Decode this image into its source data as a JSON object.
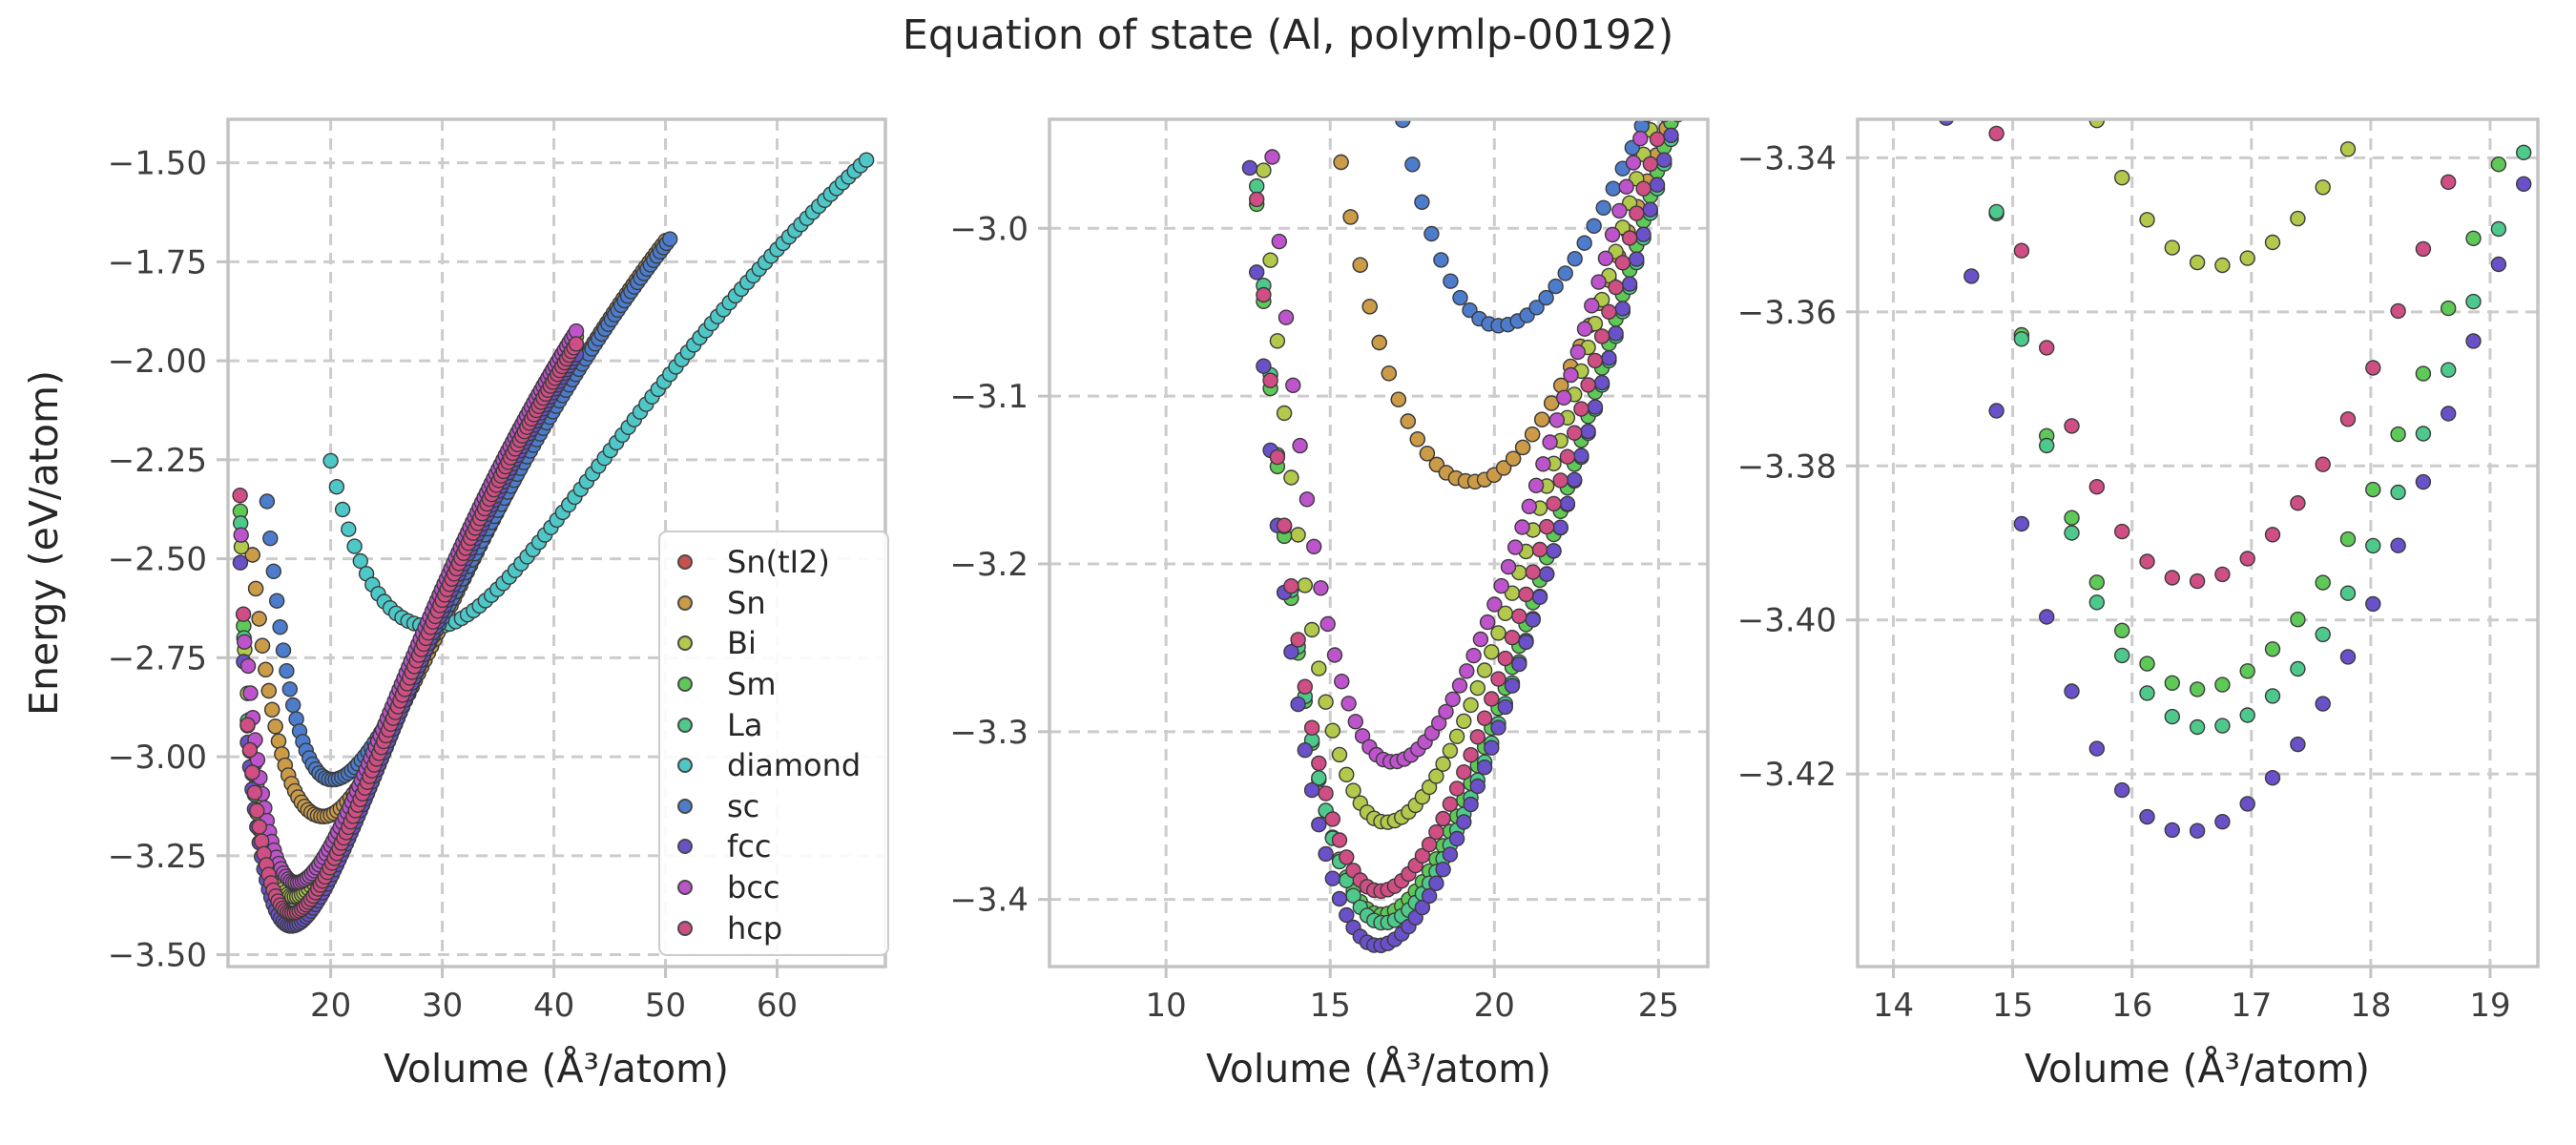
{
  "title": "Equation of state (Al, polymlp-00192)",
  "xlabel": "Volume (Å³/atom)",
  "ylabel": "Energy (eV/atom)",
  "legend": {
    "entries": [
      {
        "name": "sn-ti2",
        "label": "Sn(tI2)",
        "color": "#c9504e"
      },
      {
        "name": "sn",
        "label": "Sn",
        "color": "#cc9b48"
      },
      {
        "name": "bi",
        "label": "Bi",
        "color": "#b2c94b"
      },
      {
        "name": "sm",
        "label": "Sm",
        "color": "#5ec957"
      },
      {
        "name": "la",
        "label": "La",
        "color": "#4ec98c"
      },
      {
        "name": "diamond",
        "label": "diamond",
        "color": "#4dc7c7"
      },
      {
        "name": "sc",
        "label": "sc",
        "color": "#4c7ccb"
      },
      {
        "name": "fcc",
        "label": "fcc",
        "color": "#6a51c9"
      },
      {
        "name": "bcc",
        "label": "bcc",
        "color": "#bd54cc"
      },
      {
        "name": "hcp",
        "label": "hcp",
        "color": "#cf4e84"
      }
    ]
  },
  "style_colors": {
    "grid": "#cccccc",
    "spine": "#c3c3c3",
    "tick_text": "#3d3d3d",
    "marker_edge": "#3b3b3b",
    "background": "#ffffff"
  },
  "chart_data": {
    "type": "scatter",
    "title": "Equation of state (Al, polymlp-00192)",
    "model": "E(V) = E0 + k*(V0/V - 1)^2 with k = kL for V < V0, k = kR for V >= V0 (EOS fit read from figure)",
    "grid": "dashed",
    "legend_position": "center-right of first subplot",
    "series": [
      {
        "name": "sn-ti2",
        "label": "Sn(tI2)",
        "color": "#c9504e",
        "V0": 19.35,
        "E0": -3.151,
        "kL": 2.77,
        "kR": 3.87,
        "vmin": 13.0,
        "vmax": 50.0,
        "n": 128,
        "extra_points": []
      },
      {
        "name": "sn",
        "label": "Sn",
        "color": "#cc9b48",
        "V0": 19.35,
        "E0": -3.151,
        "kL": 2.77,
        "kR": 3.87,
        "vmin": 13.0,
        "vmax": 50.0,
        "n": 128,
        "extra_points": []
      },
      {
        "name": "bi",
        "label": "Bi",
        "color": "#b2c94b",
        "V0": 16.7,
        "E0": -3.354,
        "kL": 4.7,
        "kR": 3.9,
        "vmin": 12.55,
        "vmax": 42.0,
        "n": 141,
        "extra_points": [
          [
            12.0,
            -2.47
          ],
          [
            12.3,
            -2.73
          ]
        ]
      },
      {
        "name": "sm",
        "label": "Sm",
        "color": "#5ec957",
        "V0": 16.55,
        "E0": -3.409,
        "kL": 4.8,
        "kR": 3.9,
        "vmin": 12.55,
        "vmax": 42.0,
        "n": 141,
        "extra_points": [
          [
            11.9,
            -2.38
          ],
          [
            12.2,
            -2.67
          ]
        ]
      },
      {
        "name": "la",
        "label": "La",
        "color": "#4ec98c",
        "V0": 16.62,
        "E0": -3.414,
        "kL": 4.8,
        "kR": 3.92,
        "vmin": 12.55,
        "vmax": 42.0,
        "n": 141,
        "extra_points": [
          [
            11.93,
            -2.41
          ],
          [
            12.23,
            -2.7
          ]
        ]
      },
      {
        "name": "diamond",
        "label": "diamond",
        "color": "#4dc7c7",
        "V0": 29.3,
        "E0": -2.672,
        "kL": 1.94,
        "kR": 3.64,
        "vmin": 20.0,
        "vmax": 68.0,
        "n": 91,
        "extra_points": []
      },
      {
        "name": "sc",
        "label": "sc",
        "color": "#4c7ccb",
        "V0": 20.15,
        "E0": -3.058,
        "kL": 4.2,
        "kR": 3.79,
        "vmin": 14.3,
        "vmax": 50.4,
        "n": 125,
        "extra_points": []
      },
      {
        "name": "fcc",
        "label": "fcc",
        "color": "#6a51c9",
        "V0": 16.45,
        "E0": -3.4275,
        "kL": 4.8,
        "kR": 3.9,
        "vmin": 12.55,
        "vmax": 42.0,
        "n": 141,
        "extra_points": [
          [
            11.9,
            -2.51
          ],
          [
            12.2,
            -2.76
          ]
        ]
      },
      {
        "name": "bcc",
        "label": "bcc",
        "color": "#bd54cc",
        "V0": 16.9,
        "E0": -3.318,
        "kL": 4.7,
        "kR": 3.9,
        "vmin": 12.6,
        "vmax": 42.0,
        "n": 140,
        "extra_points": [
          [
            11.97,
            -2.44
          ],
          [
            12.27,
            -2.71
          ]
        ]
      },
      {
        "name": "hcp",
        "label": "hcp",
        "color": "#cf4e84",
        "V0": 16.5,
        "E0": -3.395,
        "kL": 4.8,
        "kR": 3.9,
        "vmin": 12.55,
        "vmax": 42.0,
        "n": 141,
        "extra_points": [
          [
            11.88,
            -2.34
          ],
          [
            12.18,
            -2.64
          ]
        ]
      }
    ],
    "subplots": [
      {
        "xlabel": "Volume (Å³/atom)",
        "ylabel": "Energy (eV/atom)",
        "xlim": [
          10.8,
          69.7
        ],
        "ylim": [
          -3.53,
          -1.39
        ],
        "xticks": {
          "values": [
            20,
            30,
            40,
            50,
            60
          ],
          "labels": [
            "20",
            "30",
            "40",
            "50",
            "60"
          ]
        },
        "yticks": {
          "values": [
            -3.5,
            -3.25,
            -3.0,
            -2.75,
            -2.5,
            -2.25,
            -2.0,
            -1.75,
            -1.5
          ],
          "labels": [
            "−3.50",
            "−3.25",
            "−3.00",
            "−2.75",
            "−2.50",
            "−2.25",
            "−2.00",
            "−1.75",
            "−1.50"
          ]
        }
      },
      {
        "xlabel": "Volume (Å³/atom)",
        "ylabel": null,
        "xlim": [
          6.45,
          26.5
        ],
        "ylim": [
          -3.44,
          -2.935
        ],
        "xticks": {
          "values": [
            10,
            15,
            20,
            25
          ],
          "labels": [
            "10",
            "15",
            "20",
            "25"
          ]
        },
        "yticks": {
          "values": [
            -3.4,
            -3.3,
            -3.2,
            -3.1,
            -3.0
          ],
          "labels": [
            "−3.4",
            "−3.3",
            "−3.2",
            "−3.1",
            "−3.0"
          ]
        }
      },
      {
        "xlabel": "Volume (Å³/atom)",
        "ylabel": null,
        "xlim": [
          13.7,
          19.4
        ],
        "ylim": [
          -3.445,
          -3.335
        ],
        "xticks": {
          "values": [
            14,
            15,
            16,
            17,
            18,
            19
          ],
          "labels": [
            "14",
            "15",
            "16",
            "17",
            "18",
            "19"
          ]
        },
        "yticks": {
          "values": [
            -3.42,
            -3.4,
            -3.38,
            -3.36,
            -3.34
          ],
          "labels": [
            "−3.42",
            "−3.40",
            "−3.38",
            "−3.36",
            "−3.34"
          ]
        }
      }
    ]
  }
}
